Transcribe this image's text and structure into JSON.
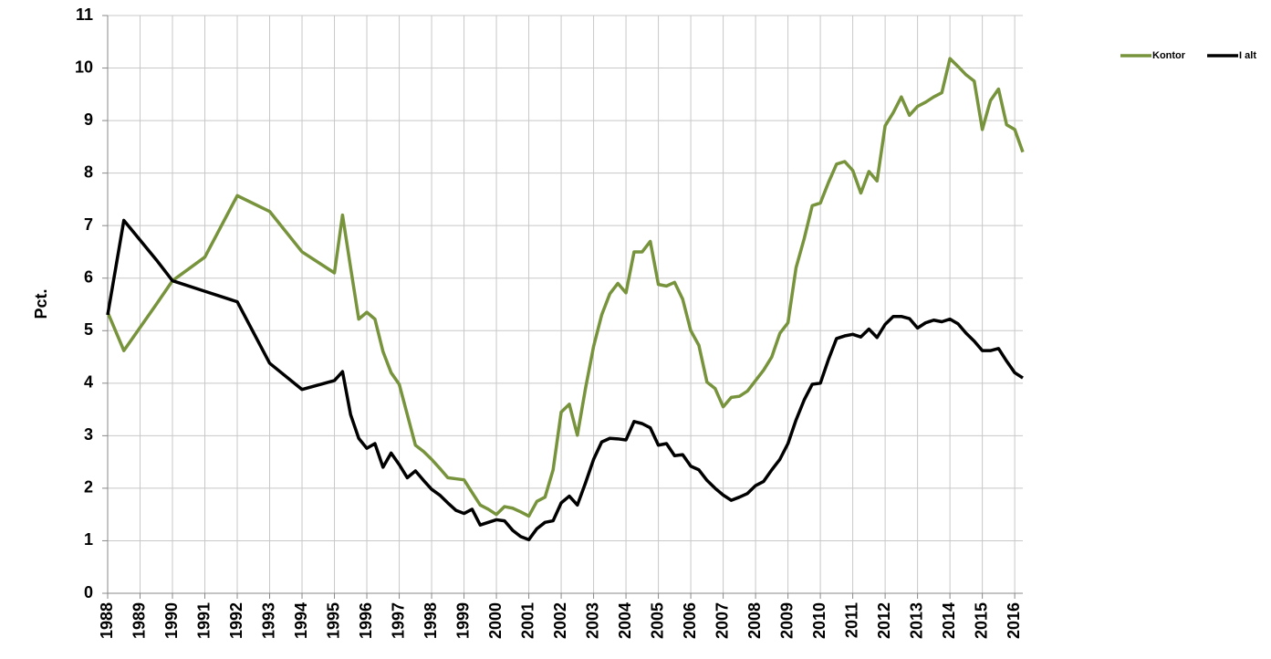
{
  "chart_data": {
    "type": "line",
    "y_label": "Pct.",
    "x": [
      1988,
      1988.5,
      1989.5,
      1990,
      1991,
      1992,
      1993,
      1994,
      1995,
      1995.25,
      1995.5,
      1995.75,
      1996,
      1996.25,
      1996.5,
      1996.75,
      1997,
      1997.25,
      1997.5,
      1997.75,
      1998,
      1998.25,
      1998.5,
      1998.75,
      1999,
      1999.25,
      1999.5,
      1999.75,
      2000,
      2000.25,
      2000.5,
      2000.75,
      2001,
      2001.25,
      2001.5,
      2001.75,
      2002,
      2002.25,
      2002.5,
      2002.75,
      2003,
      2003.25,
      2003.5,
      2003.75,
      2004,
      2004.25,
      2004.5,
      2004.75,
      2005,
      2005.25,
      2005.5,
      2005.75,
      2006,
      2006.25,
      2006.5,
      2006.75,
      2007,
      2007.25,
      2007.5,
      2007.75,
      2008,
      2008.25,
      2008.5,
      2008.75,
      2009,
      2009.25,
      2009.5,
      2009.75,
      2010,
      2010.25,
      2010.5,
      2010.75,
      2011,
      2011.25,
      2011.5,
      2011.75,
      2012,
      2012.25,
      2012.5,
      2012.75,
      2013,
      2013.25,
      2013.5,
      2013.75,
      2014,
      2014.25,
      2014.5,
      2014.75,
      2015,
      2015.25,
      2015.5,
      2015.75,
      2016,
      2016.25
    ],
    "series": [
      {
        "name": "Kontor",
        "color": "#77933c",
        "values": [
          5.35,
          4.62,
          5.5,
          5.95,
          6.4,
          7.57,
          7.27,
          6.5,
          6.1,
          7.2,
          6.2,
          5.22,
          5.35,
          5.22,
          4.6,
          4.2,
          3.98,
          3.4,
          2.82,
          2.7,
          2.55,
          2.38,
          2.2,
          2.18,
          2.16,
          1.92,
          1.68,
          1.6,
          1.5,
          1.65,
          1.62,
          1.55,
          1.47,
          1.75,
          1.83,
          2.35,
          3.45,
          3.6,
          3.01,
          3.9,
          4.7,
          5.3,
          5.7,
          5.9,
          5.72,
          6.5,
          6.5,
          6.7,
          5.88,
          5.85,
          5.92,
          5.6,
          5.0,
          4.72,
          4.02,
          3.9,
          3.55,
          3.73,
          3.75,
          3.85,
          4.05,
          4.25,
          4.5,
          4.95,
          5.15,
          6.2,
          6.75,
          7.38,
          7.43,
          7.82,
          8.17,
          8.22,
          8.05,
          7.62,
          8.03,
          7.85,
          8.9,
          9.15,
          9.45,
          9.1,
          9.27,
          9.35,
          9.45,
          9.53,
          10.18,
          10.03,
          9.87,
          9.75,
          8.83,
          9.38,
          9.6,
          8.92,
          8.83,
          8.4
        ]
      },
      {
        "name": "I alt",
        "color": "#000000",
        "values": [
          5.3,
          7.1,
          6.35,
          5.95,
          5.75,
          5.55,
          4.38,
          3.88,
          4.05,
          4.22,
          3.4,
          2.95,
          2.76,
          2.85,
          2.4,
          2.67,
          2.45,
          2.2,
          2.33,
          2.15,
          1.98,
          1.87,
          1.72,
          1.58,
          1.52,
          1.6,
          1.3,
          1.35,
          1.4,
          1.38,
          1.2,
          1.08,
          1.02,
          1.23,
          1.35,
          1.38,
          1.72,
          1.85,
          1.68,
          2.1,
          2.55,
          2.88,
          2.95,
          2.94,
          2.92,
          3.27,
          3.23,
          3.15,
          2.82,
          2.85,
          2.62,
          2.64,
          2.42,
          2.35,
          2.15,
          2.0,
          1.87,
          1.77,
          1.83,
          1.9,
          2.05,
          2.13,
          2.35,
          2.55,
          2.85,
          3.3,
          3.68,
          3.98,
          4.0,
          4.45,
          4.85,
          4.9,
          4.93,
          4.88,
          5.03,
          4.87,
          5.12,
          5.27,
          5.27,
          5.23,
          5.05,
          5.15,
          5.2,
          5.17,
          5.22,
          5.13,
          4.95,
          4.8,
          4.62,
          4.62,
          4.66,
          4.42,
          4.2,
          4.1
        ]
      }
    ],
    "xlim": [
      1988,
      2016.25
    ],
    "xticks": [
      1988,
      1989,
      1990,
      1991,
      1992,
      1993,
      1994,
      1995,
      1996,
      1997,
      1998,
      1999,
      2000,
      2001,
      2002,
      2003,
      2004,
      2005,
      2006,
      2007,
      2008,
      2009,
      2010,
      2011,
      2012,
      2013,
      2014,
      2015,
      2016
    ],
    "ylim": [
      0,
      11
    ],
    "yticks": [
      0,
      1,
      2,
      3,
      4,
      5,
      6,
      7,
      8,
      9,
      10,
      11
    ],
    "grid": true,
    "legend": "top-right"
  }
}
